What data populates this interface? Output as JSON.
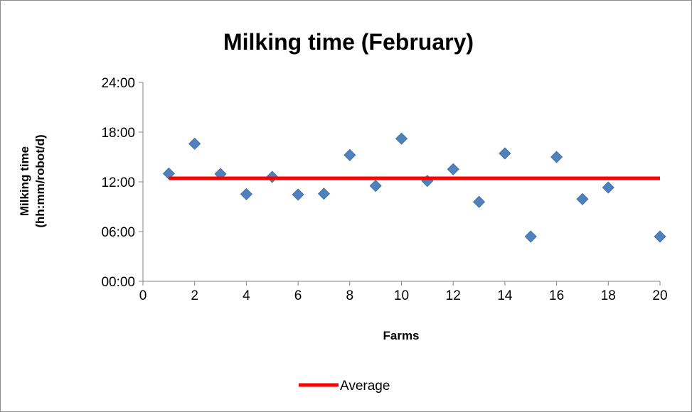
{
  "chart_data": {
    "type": "scatter",
    "title": "Milking time (February)",
    "xlabel": "Farms",
    "ylabel_lines": [
      "Milking time",
      "(hh:mm/robot/d)"
    ],
    "xlim": [
      0,
      20
    ],
    "ylim_hours": [
      0,
      24
    ],
    "x_ticks": [
      "0",
      "2",
      "4",
      "6",
      "8",
      "10",
      "12",
      "14",
      "16",
      "18",
      "20"
    ],
    "y_ticks": [
      "00:00",
      "06:00",
      "12:00",
      "18:00",
      "24:00"
    ],
    "colors": {
      "points": "#4f81bd",
      "average": "#ff0000"
    },
    "legend": {
      "position": "bottom",
      "entries": [
        "Average"
      ]
    },
    "series": [
      {
        "kind": "points",
        "x": [
          1,
          2,
          3,
          4,
          5,
          6,
          7,
          8,
          9,
          10,
          11,
          12,
          13,
          14,
          15,
          16,
          17,
          18,
          20
        ],
        "y": [
          "13:00",
          "16:36",
          "12:57",
          "10:31",
          "12:36",
          "10:28",
          "10:34",
          "15:14",
          "11:31",
          "17:13",
          "12:07",
          "13:31",
          "9:35",
          "15:26",
          "5:24",
          "15:00",
          "9:55",
          "11:19",
          "5:24"
        ]
      },
      {
        "kind": "line",
        "name": "Average",
        "x": [
          1,
          20
        ],
        "y": [
          "12:26",
          "12:26"
        ]
      }
    ]
  }
}
